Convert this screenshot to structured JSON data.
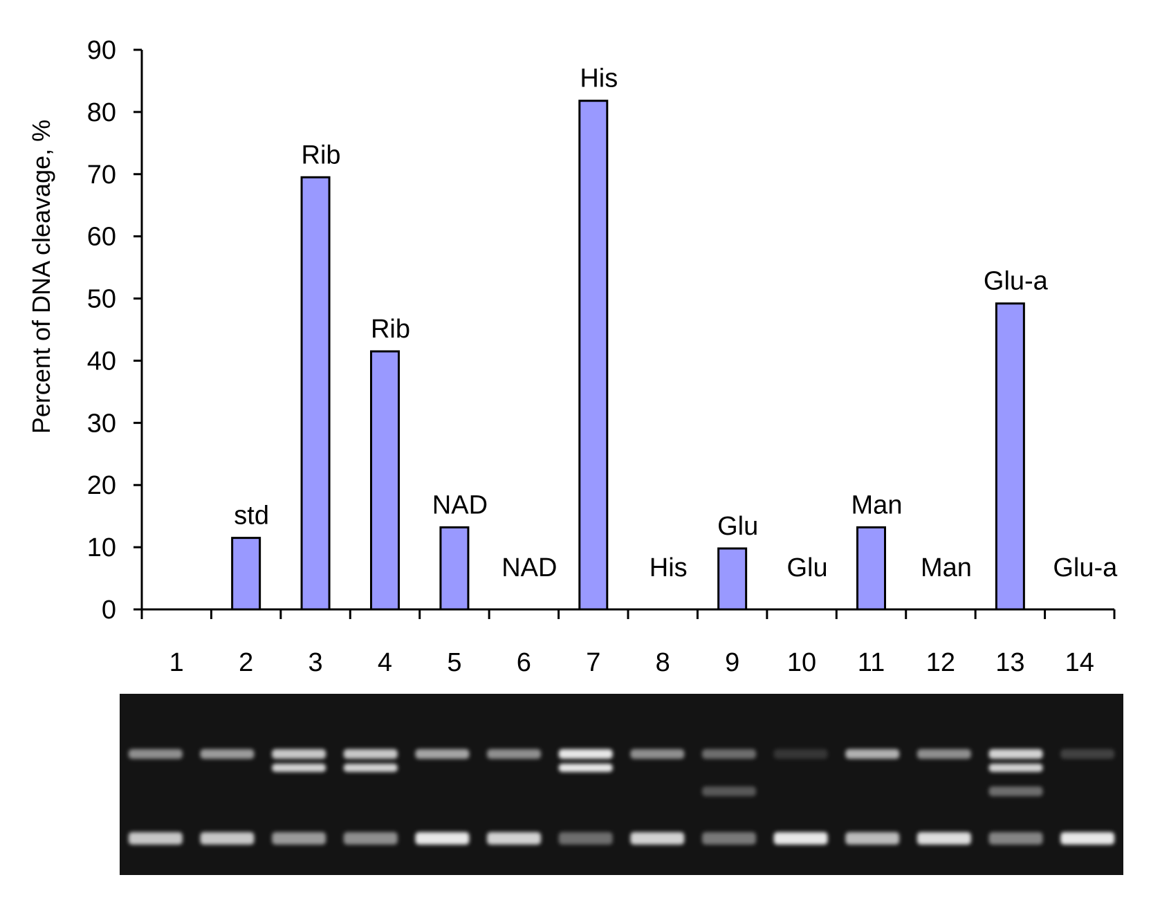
{
  "chart_data": {
    "type": "bar",
    "ylabel": "Percent of DNA cleavage, %",
    "xlabel": "",
    "ylim": [
      0,
      90
    ],
    "yticks": [
      0,
      10,
      20,
      30,
      40,
      50,
      60,
      70,
      80,
      90
    ],
    "grid": false,
    "categories": [
      "1",
      "2",
      "3",
      "4",
      "5",
      "6",
      "7",
      "8",
      "9",
      "10",
      "11",
      "12",
      "13",
      "14"
    ],
    "values": [
      0,
      11.5,
      69.5,
      41.5,
      13.2,
      0,
      81.8,
      0,
      9.8,
      0,
      13.2,
      0,
      49.2,
      0
    ],
    "bar_labels": [
      "",
      "std",
      "Rib",
      "Rib",
      "NAD",
      "NAD",
      "His",
      "His",
      "Glu",
      "Glu",
      "Man",
      "Man",
      "Glu-a",
      "Glu-a"
    ],
    "bar_color": "#9999ff",
    "bar_edge_color": "#000000"
  },
  "gel_image": {
    "lanes": [
      "1",
      "2",
      "3",
      "4",
      "5",
      "6",
      "7",
      "8",
      "9",
      "10",
      "11",
      "12",
      "13",
      "14"
    ],
    "upper_band_intensity": [
      0.55,
      0.6,
      0.8,
      0.8,
      0.65,
      0.55,
      0.95,
      0.55,
      0.4,
      0.15,
      0.7,
      0.55,
      0.85,
      0.2
    ],
    "nicked_band_intensity": [
      0,
      0,
      0.85,
      0.85,
      0,
      0,
      0.95,
      0,
      0,
      0,
      0,
      0,
      0.85,
      0
    ],
    "middle_band_intensity": [
      0,
      0,
      0,
      0,
      0,
      0,
      0,
      0,
      0.3,
      0,
      0,
      0,
      0.4,
      0
    ],
    "lower_band_intensity": [
      0.8,
      0.8,
      0.6,
      0.55,
      0.95,
      0.85,
      0.4,
      0.85,
      0.45,
      0.95,
      0.75,
      0.9,
      0.5,
      0.95
    ],
    "background_color": "#141414",
    "band_color": "#f4f4f4"
  }
}
